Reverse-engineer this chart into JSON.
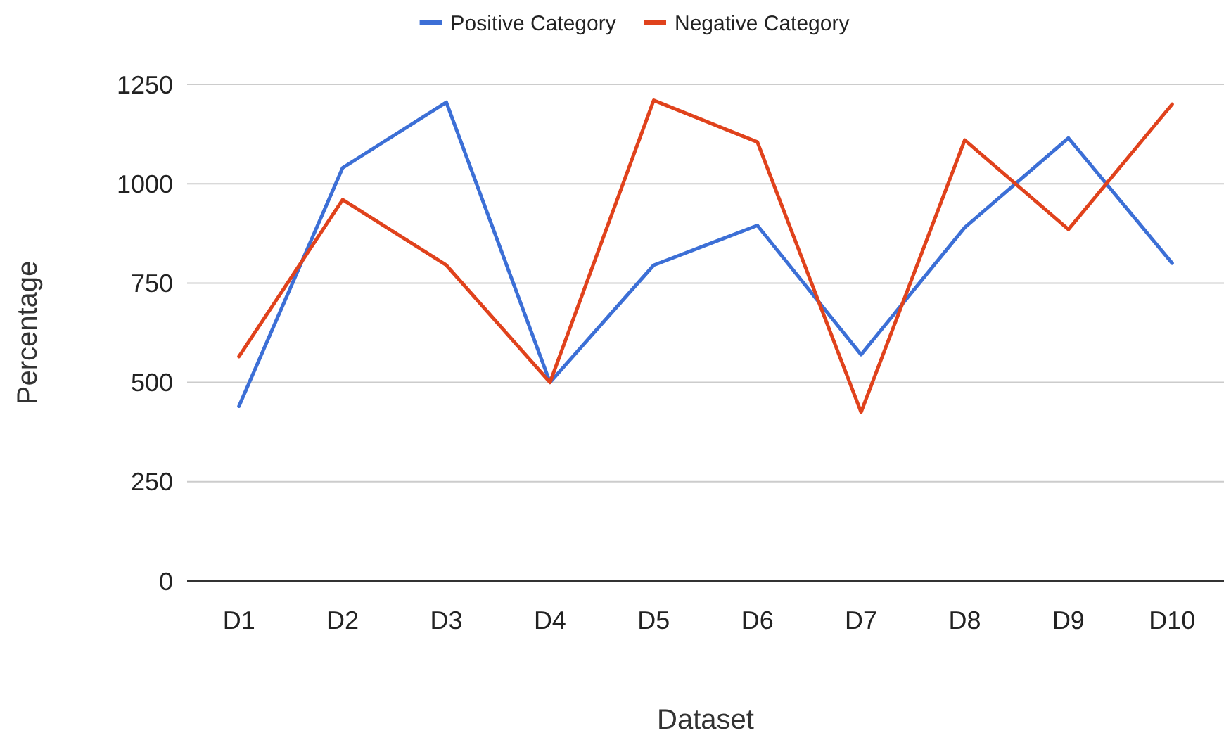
{
  "chart_data": {
    "type": "line",
    "xlabel": "Dataset",
    "ylabel": "Percentage",
    "categories": [
      "D1",
      "D2",
      "D3",
      "D4",
      "D5",
      "D6",
      "D7",
      "D8",
      "D9",
      "D10"
    ],
    "series": [
      {
        "name": "Positive Category",
        "color": "#3c6fd6",
        "values": [
          440,
          1040,
          1205,
          500,
          795,
          895,
          570,
          890,
          1115,
          800
        ]
      },
      {
        "name": "Negative Category",
        "color": "#e0421c",
        "values": [
          565,
          960,
          795,
          500,
          1210,
          1105,
          425,
          1110,
          885,
          1200
        ]
      }
    ],
    "ylim": [
      0,
      1250
    ],
    "yticks": [
      0,
      250,
      500,
      750,
      1000,
      1250
    ],
    "grid": "y",
    "legend": "top",
    "marker": "none",
    "line_style": "solid"
  }
}
